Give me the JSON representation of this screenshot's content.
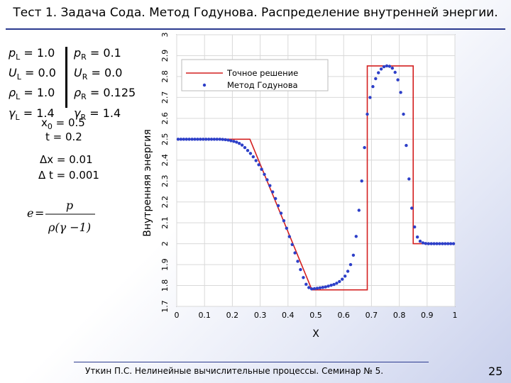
{
  "slide": {
    "title": "Тест 1. Задача Сода. Метод Годунова. Распределение внутренней энергии.",
    "footer": "Уткин П.С. Нелинейные вычислительные процессы. Семинар № 5.",
    "page_number": "25"
  },
  "params": {
    "left": [
      {
        "sym": "p",
        "sub": "L",
        "val": " = 1.0"
      },
      {
        "sym": "U",
        "sub": "L",
        "val": " = 0.0"
      },
      {
        "sym": "ρ",
        "sub": "L",
        "val": " = 1.0"
      },
      {
        "sym": "γ",
        "sub": "L",
        "val": " = 1.4"
      }
    ],
    "right": [
      {
        "sym": "p",
        "sub": "R",
        "val": " = 0.1"
      },
      {
        "sym": "U",
        "sub": "R",
        "val": " = 0.0"
      },
      {
        "sym": "ρ",
        "sub": "R",
        "val": " = 0.125"
      },
      {
        "sym": "γ",
        "sub": "R",
        "val": " = 1.4"
      }
    ],
    "x0": {
      "sym": "x",
      "sub": "0",
      "val": " = 0.5"
    },
    "t0": "t = 0.2",
    "dx": "Δx = 0.01",
    "dt": "Δ t = 0.001",
    "formula": {
      "lhs": "e",
      "num": "p",
      "den": "ρ(γ −1)"
    }
  },
  "chart_data": {
    "type": "line",
    "xlabel": "X",
    "ylabel": "Внутренняя энергия",
    "xlim": [
      0,
      1
    ],
    "ylim": [
      1.7,
      3.0
    ],
    "xticks": [
      "0",
      "0.1",
      "0.2",
      "0.3",
      "0.4",
      "0.5",
      "0.6",
      "0.7",
      "0.8",
      "0.9",
      "1"
    ],
    "yticks": [
      "1.7",
      "1.8",
      "1.9",
      "2",
      "2.1",
      "2.2",
      "2.3",
      "2.4",
      "2.5",
      "2.6",
      "2.7",
      "2.8",
      "2.9",
      "3"
    ],
    "grid": true,
    "legend_position": "top",
    "series": [
      {
        "name": "Точное решение",
        "style": "line",
        "color": "#d42020",
        "x": [
          0,
          0.263,
          0.486,
          0.486,
          0.685,
          0.685,
          0.85,
          0.85,
          1.0
        ],
        "y": [
          2.5,
          2.5,
          1.779,
          1.779,
          1.779,
          2.851,
          2.851,
          2.0,
          2.0
        ]
      },
      {
        "name": "Метод Годунова",
        "style": "markers",
        "color": "#2d3fc8",
        "x": [
          0.005,
          0.015,
          0.025,
          0.035,
          0.045,
          0.055,
          0.065,
          0.075,
          0.085,
          0.095,
          0.105,
          0.115,
          0.125,
          0.135,
          0.145,
          0.155,
          0.165,
          0.175,
          0.185,
          0.195,
          0.205,
          0.215,
          0.225,
          0.235,
          0.245,
          0.255,
          0.265,
          0.275,
          0.285,
          0.295,
          0.305,
          0.315,
          0.325,
          0.335,
          0.345,
          0.355,
          0.365,
          0.375,
          0.385,
          0.395,
          0.405,
          0.415,
          0.425,
          0.435,
          0.445,
          0.455,
          0.465,
          0.475,
          0.485,
          0.495,
          0.505,
          0.515,
          0.525,
          0.535,
          0.545,
          0.555,
          0.565,
          0.575,
          0.585,
          0.595,
          0.605,
          0.615,
          0.625,
          0.635,
          0.645,
          0.655,
          0.665,
          0.675,
          0.685,
          0.695,
          0.705,
          0.715,
          0.725,
          0.735,
          0.745,
          0.755,
          0.765,
          0.775,
          0.785,
          0.795,
          0.805,
          0.815,
          0.825,
          0.835,
          0.845,
          0.855,
          0.865,
          0.875,
          0.885,
          0.895,
          0.905,
          0.915,
          0.925,
          0.935,
          0.945,
          0.955,
          0.965,
          0.975,
          0.985,
          0.995
        ],
        "y": [
          2.5,
          2.5,
          2.5,
          2.5,
          2.5,
          2.5,
          2.5,
          2.5,
          2.5,
          2.5,
          2.5,
          2.5,
          2.5,
          2.5,
          2.5,
          2.5,
          2.499,
          2.498,
          2.496,
          2.493,
          2.49,
          2.486,
          2.48,
          2.472,
          2.46,
          2.446,
          2.432,
          2.416,
          2.398,
          2.378,
          2.356,
          2.332,
          2.306,
          2.278,
          2.248,
          2.216,
          2.182,
          2.146,
          2.11,
          2.074,
          2.034,
          1.996,
          1.956,
          1.916,
          1.876,
          1.838,
          1.806,
          1.79,
          1.784,
          1.785,
          1.787,
          1.789,
          1.791,
          1.793,
          1.797,
          1.801,
          1.805,
          1.811,
          1.819,
          1.83,
          1.845,
          1.868,
          1.9,
          1.945,
          2.035,
          2.16,
          2.3,
          2.46,
          2.62,
          2.7,
          2.752,
          2.79,
          2.818,
          2.836,
          2.847,
          2.851,
          2.849,
          2.84,
          2.82,
          2.784,
          2.724,
          2.62,
          2.47,
          2.31,
          2.17,
          2.08,
          2.032,
          2.012,
          2.004,
          2.001,
          2.0,
          2.0,
          2.0,
          2.0,
          2.0,
          2.0,
          2.0,
          2.0,
          2.0,
          2.0
        ]
      }
    ]
  }
}
